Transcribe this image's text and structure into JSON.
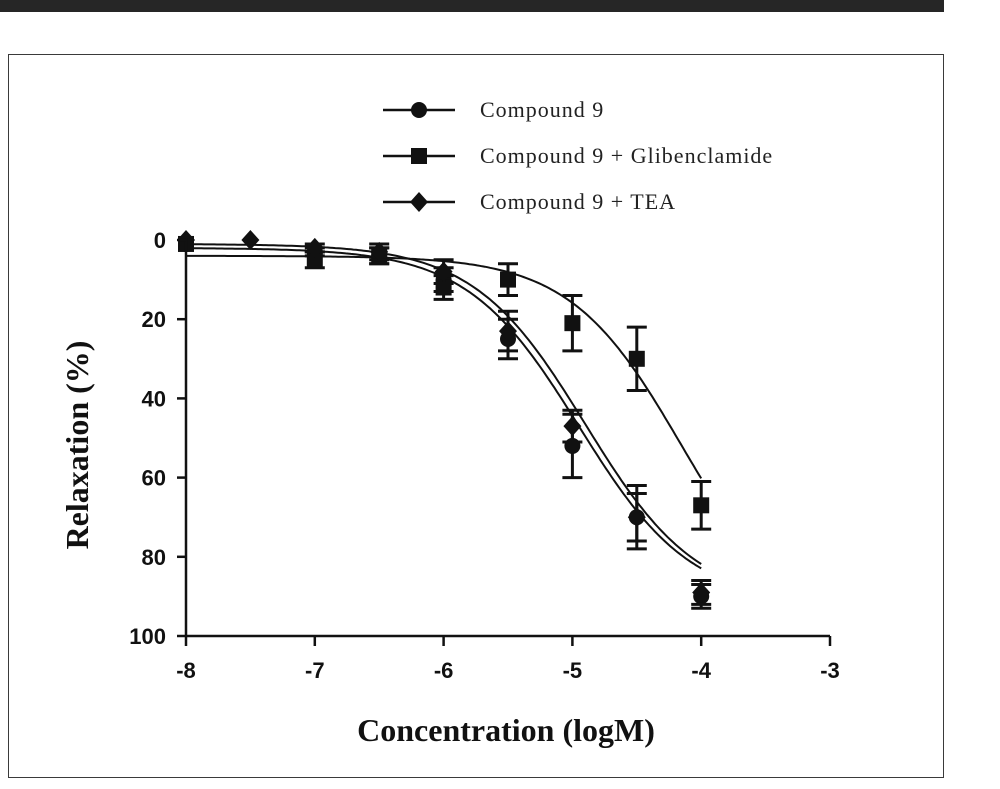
{
  "chart_data": {
    "type": "scatter",
    "xlabel": "Concentration (logM)",
    "ylabel": "Relaxation (%)",
    "xlim": [
      -8,
      -3
    ],
    "ylim": [
      0,
      100
    ],
    "y_inverted": true,
    "x_ticks": [
      "-8",
      "-7",
      "-6",
      "-5",
      "-4",
      "-3"
    ],
    "y_ticks": [
      "0",
      "20",
      "40",
      "60",
      "80",
      "100"
    ],
    "legend_position": "top",
    "grid": false,
    "series": [
      {
        "name": "Compound 9",
        "marker": "circle",
        "x": [
          -8,
          -7,
          -6.5,
          -6,
          -5.5,
          -5,
          -4.5,
          -4
        ],
        "y": [
          1,
          3,
          4,
          10,
          25,
          52,
          70,
          90
        ],
        "err": [
          0,
          1,
          2,
          3,
          5,
          8,
          8,
          3
        ],
        "fit": {
          "top": 2,
          "bottom": 92,
          "logEC50": -4.95,
          "hill": 1.0
        }
      },
      {
        "name": "Compound 9 + Glibenclamide",
        "marker": "square",
        "x": [
          -8,
          -7,
          -6.5,
          -6,
          -5.5,
          -5,
          -4.5,
          -4
        ],
        "y": [
          1,
          5,
          4,
          12,
          10,
          21,
          30,
          67
        ],
        "err": [
          0,
          2,
          2,
          3,
          4,
          7,
          8,
          6
        ],
        "fit": {
          "top": 4,
          "bottom": 100,
          "logEC50": -4.15,
          "hill": 1.0
        }
      },
      {
        "name": "Compound 9 + TEA",
        "marker": "diamond",
        "x": [
          -8,
          -7.5,
          -7,
          -6.5,
          -6,
          -5.5,
          -5,
          -4.5,
          -4
        ],
        "y": [
          0,
          0,
          2,
          3,
          8,
          23,
          47,
          70,
          89
        ],
        "err": [
          0,
          0,
          1,
          2,
          3,
          5,
          4,
          6,
          3
        ],
        "fit": {
          "top": 1,
          "bottom": 92,
          "logEC50": -4.9,
          "hill": 1.0
        }
      }
    ]
  }
}
